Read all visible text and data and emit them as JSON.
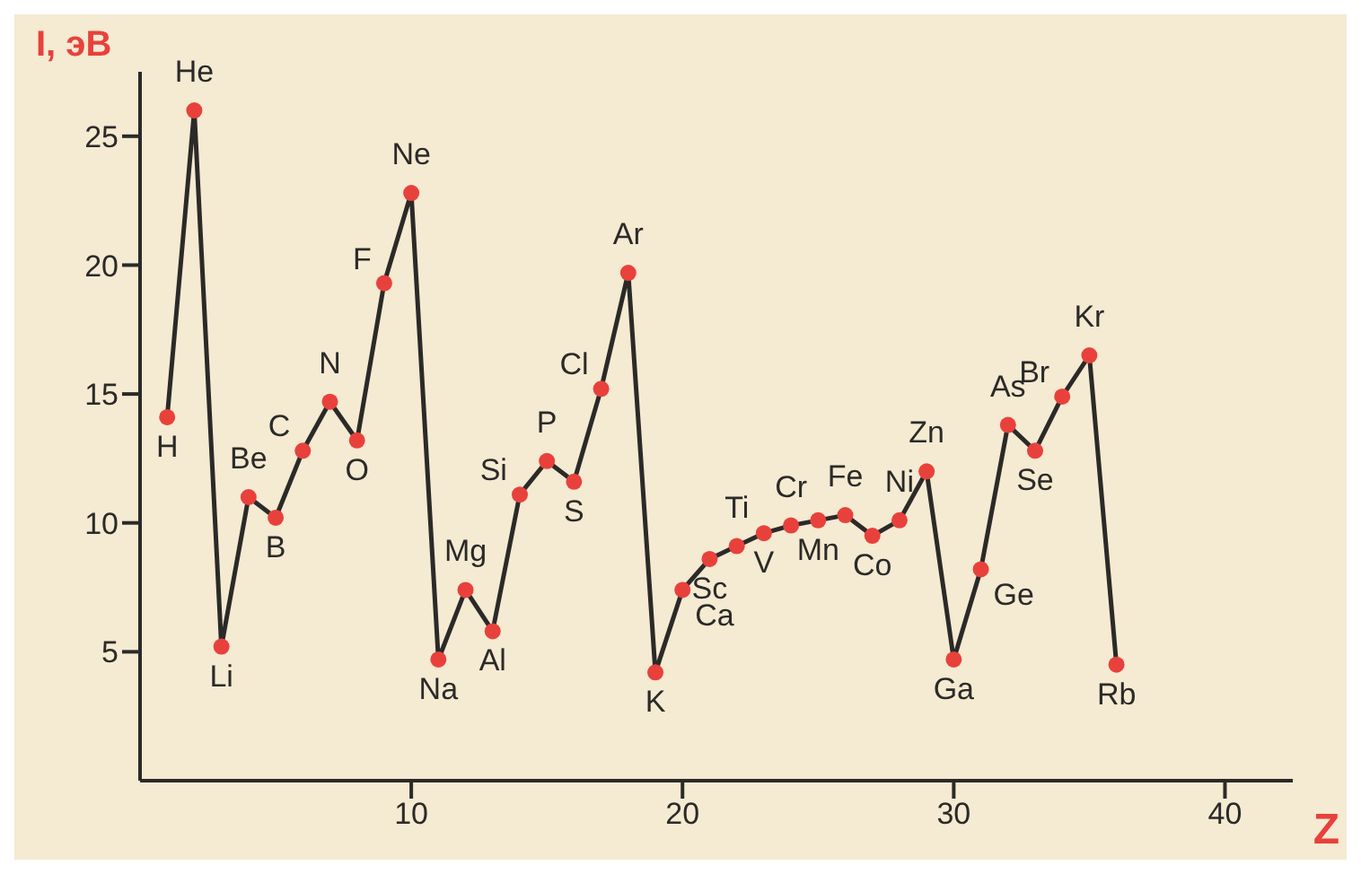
{
  "chart_data": {
    "type": "line",
    "xlabel": "Z",
    "ylabel": "I, эВ",
    "xlim": [
      0,
      42.5
    ],
    "ylim": [
      0,
      27.5
    ],
    "xticks": [
      10,
      20,
      30,
      40
    ],
    "yticks": [
      5,
      10,
      15,
      20,
      25
    ],
    "grid": false,
    "legend": false,
    "marker": "circle",
    "line_style": "solid",
    "x": [
      1,
      2,
      3,
      4,
      5,
      6,
      7,
      8,
      9,
      10,
      11,
      12,
      13,
      14,
      15,
      16,
      17,
      18,
      19,
      20,
      21,
      22,
      23,
      24,
      25,
      26,
      27,
      28,
      29,
      30,
      31,
      32,
      33,
      34,
      35,
      36
    ],
    "series": [
      {
        "color": "#2b2a28",
        "values": [
          14.1,
          26.0,
          5.2,
          11.0,
          10.2,
          12.8,
          14.7,
          13.2,
          19.3,
          22.8,
          4.7,
          7.4,
          5.8,
          11.1,
          12.4,
          11.6,
          15.2,
          19.7,
          4.2,
          7.4,
          8.6,
          9.1,
          9.6,
          9.9,
          10.1,
          10.3,
          9.5,
          10.1,
          12.0,
          4.7,
          8.2,
          13.8,
          12.8,
          14.9,
          16.5,
          4.5
        ]
      }
    ],
    "annotations": [
      {
        "text": "H",
        "x": 1,
        "y": 14.1
      },
      {
        "text": "He",
        "x": 2,
        "y": 26.0
      },
      {
        "text": "Li",
        "x": 3,
        "y": 5.2
      },
      {
        "text": "Be",
        "x": 4,
        "y": 11.0
      },
      {
        "text": "B",
        "x": 5,
        "y": 10.2
      },
      {
        "text": "C",
        "x": 6,
        "y": 12.8
      },
      {
        "text": "N",
        "x": 7,
        "y": 14.7
      },
      {
        "text": "O",
        "x": 8,
        "y": 13.2
      },
      {
        "text": "F",
        "x": 9,
        "y": 19.3
      },
      {
        "text": "Ne",
        "x": 10,
        "y": 22.8
      },
      {
        "text": "Na",
        "x": 11,
        "y": 4.7
      },
      {
        "text": "Mg",
        "x": 12,
        "y": 7.4
      },
      {
        "text": "Al",
        "x": 13,
        "y": 5.8
      },
      {
        "text": "Si",
        "x": 14,
        "y": 11.1
      },
      {
        "text": "P",
        "x": 15,
        "y": 12.4
      },
      {
        "text": "S",
        "x": 16,
        "y": 11.6
      },
      {
        "text": "Cl",
        "x": 17,
        "y": 15.2
      },
      {
        "text": "Ar",
        "x": 18,
        "y": 19.7
      },
      {
        "text": "K",
        "x": 19,
        "y": 4.2
      },
      {
        "text": "Ca",
        "x": 20,
        "y": 7.4
      },
      {
        "text": "Sc",
        "x": 21,
        "y": 8.6
      },
      {
        "text": "Ti",
        "x": 22,
        "y": 9.1
      },
      {
        "text": "V",
        "x": 23,
        "y": 9.6
      },
      {
        "text": "Cr",
        "x": 24,
        "y": 9.9
      },
      {
        "text": "Mn",
        "x": 25,
        "y": 10.1
      },
      {
        "text": "Fe",
        "x": 26,
        "y": 10.3
      },
      {
        "text": "Co",
        "x": 27,
        "y": 9.5
      },
      {
        "text": "Ni",
        "x": 28,
        "y": 10.1
      },
      {
        "text": "Zn",
        "x": 29,
        "y": 12.0
      },
      {
        "text": "Ga",
        "x": 30,
        "y": 4.7
      },
      {
        "text": "Ge",
        "x": 31,
        "y": 8.2
      },
      {
        "text": "As",
        "x": 32,
        "y": 13.8
      },
      {
        "text": "Se",
        "x": 33,
        "y": 12.8
      },
      {
        "text": "Br",
        "x": 34,
        "y": 14.9
      },
      {
        "text": "Kr",
        "x": 35,
        "y": 16.5
      },
      {
        "text": "Rb",
        "x": 36,
        "y": 4.5
      }
    ]
  }
}
